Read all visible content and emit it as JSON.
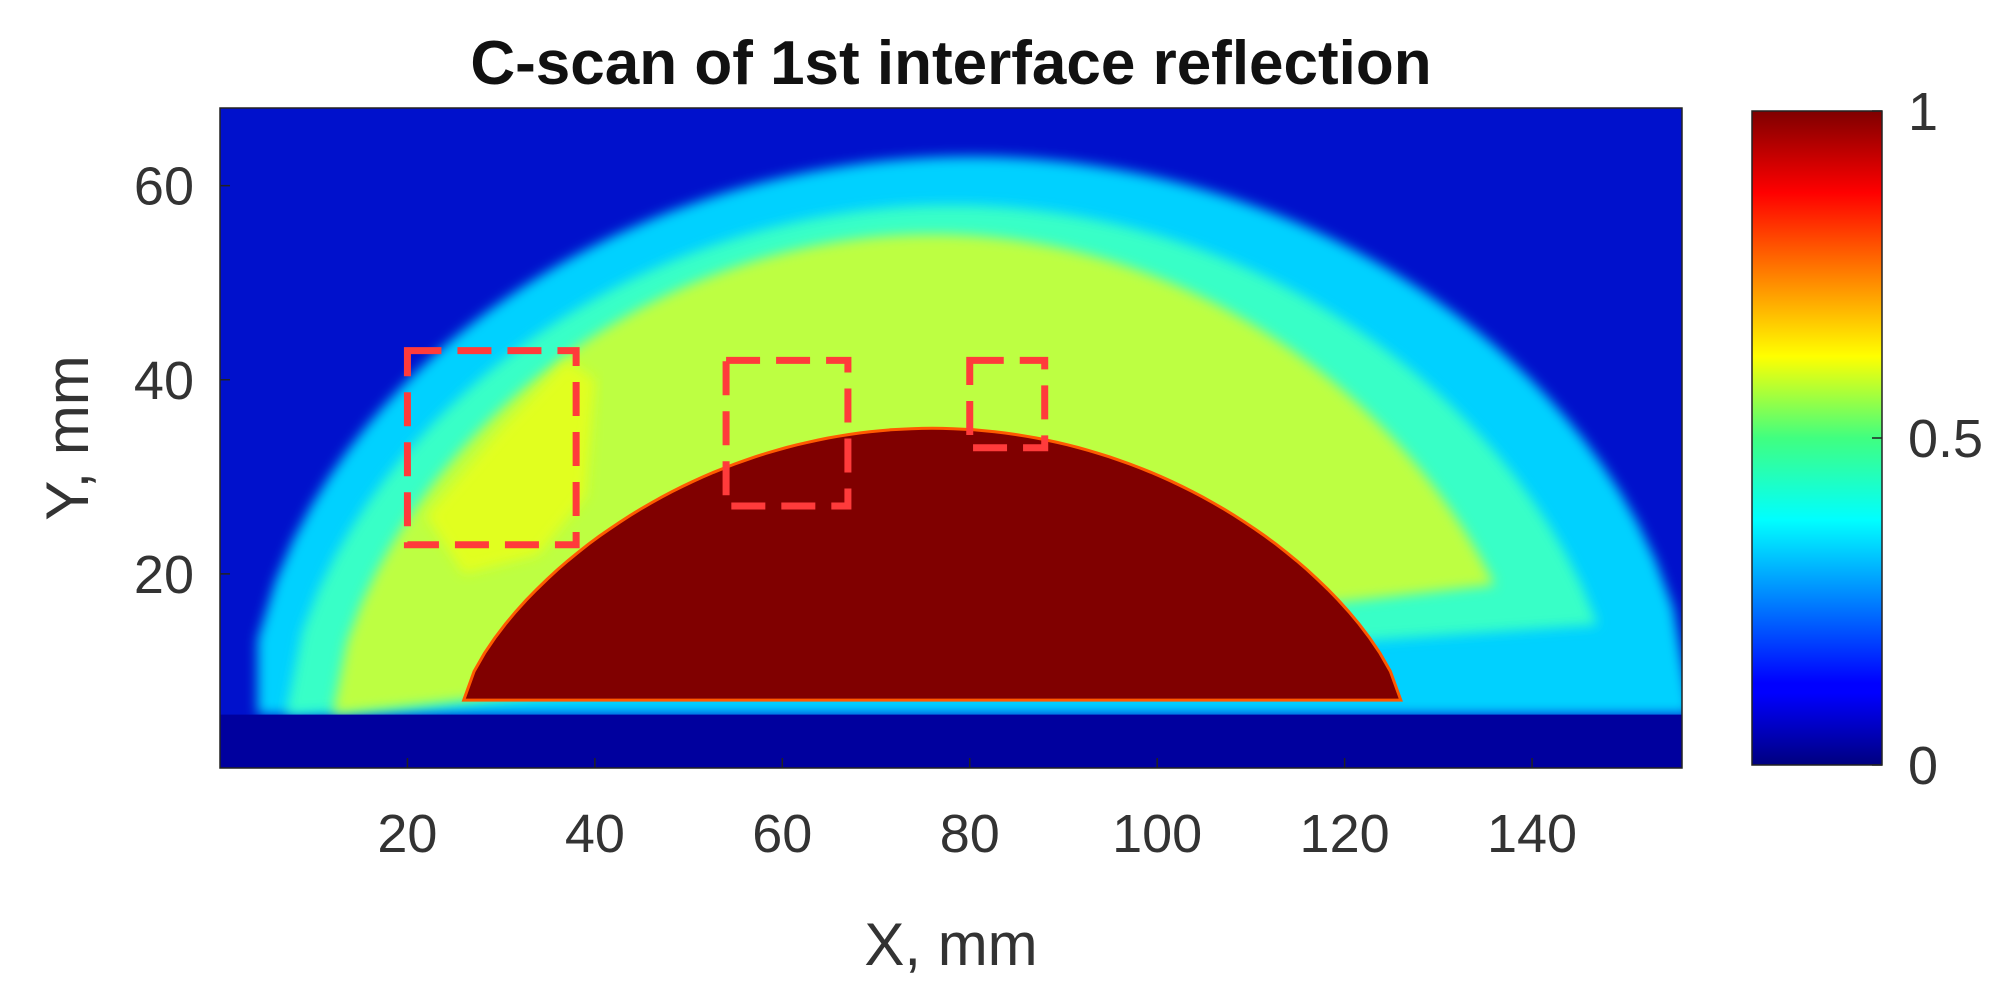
{
  "chart_data": {
    "type": "heatmap",
    "title": "C-scan of 1st interface reflection",
    "xlabel": "X, mm",
    "ylabel": "Y, mm",
    "xlim": [
      0,
      156
    ],
    "ylim": [
      0,
      68
    ],
    "x_ticks": [
      20,
      40,
      60,
      80,
      100,
      120,
      140
    ],
    "y_ticks": [
      20,
      40,
      60
    ],
    "colormap": "jet",
    "colorbar": {
      "range": [
        0,
        1
      ],
      "ticks": [
        0,
        0.5,
        1
      ],
      "tick_labels": [
        "0",
        "0.5",
        "1"
      ]
    },
    "regions": [
      {
        "name": "background",
        "value": 0.15
      },
      {
        "name": "outer band",
        "value": 0.33
      },
      {
        "name": "middle band",
        "value": 0.43
      },
      {
        "name": "inner band",
        "value": 0.56
      },
      {
        "name": "core",
        "value": 1.0
      }
    ],
    "core_boundary": {
      "x_start": 26,
      "x_end": 126,
      "peak_x": 76,
      "peak_y": 35,
      "base_y": 7
    },
    "highlight_boxes": [
      {
        "x": [
          20,
          38
        ],
        "y": [
          23,
          43
        ]
      },
      {
        "x": [
          54,
          67
        ],
        "y": [
          27,
          42
        ]
      },
      {
        "x": [
          80,
          88
        ],
        "y": [
          33,
          42
        ]
      }
    ],
    "highlight_color": "#ff3b3b"
  }
}
